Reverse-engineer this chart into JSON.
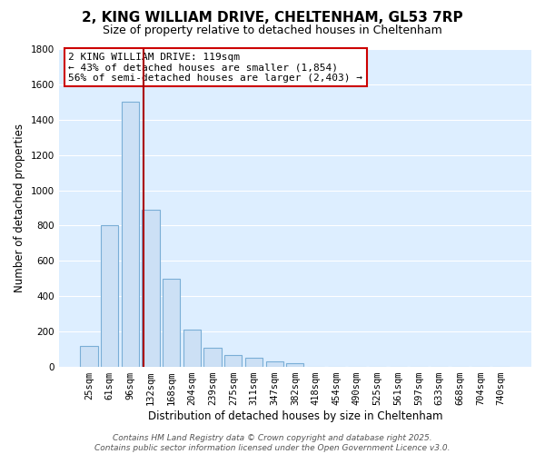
{
  "title": "2, KING WILLIAM DRIVE, CHELTENHAM, GL53 7RP",
  "subtitle": "Size of property relative to detached houses in Cheltenham",
  "xlabel": "Distribution of detached houses by size in Cheltenham",
  "ylabel": "Number of detached properties",
  "bar_labels": [
    "25sqm",
    "61sqm",
    "96sqm",
    "132sqm",
    "168sqm",
    "204sqm",
    "239sqm",
    "275sqm",
    "311sqm",
    "347sqm",
    "382sqm",
    "418sqm",
    "454sqm",
    "490sqm",
    "525sqm",
    "561sqm",
    "597sqm",
    "633sqm",
    "668sqm",
    "704sqm",
    "740sqm"
  ],
  "bar_values": [
    120,
    800,
    1500,
    890,
    500,
    210,
    110,
    65,
    50,
    30,
    20,
    0,
    0,
    0,
    0,
    0,
    0,
    0,
    0,
    0,
    0
  ],
  "bar_color": "#cce0f5",
  "bar_edge_color": "#7aaed6",
  "ylim": [
    0,
    1800
  ],
  "yticks": [
    0,
    200,
    400,
    600,
    800,
    1000,
    1200,
    1400,
    1600,
    1800
  ],
  "grid_color": "#ffffff",
  "bg_color": "#ddeeff",
  "fig_bg_color": "#ffffff",
  "vline_x": 2.64,
  "vline_color": "#aa0000",
  "annotation_box_text": "2 KING WILLIAM DRIVE: 119sqm\n← 43% of detached houses are smaller (1,854)\n56% of semi-detached houses are larger (2,403) →",
  "footer_line1": "Contains HM Land Registry data © Crown copyright and database right 2025.",
  "footer_line2": "Contains public sector information licensed under the Open Government Licence v3.0.",
  "title_fontsize": 11,
  "subtitle_fontsize": 9,
  "xlabel_fontsize": 8.5,
  "ylabel_fontsize": 8.5,
  "tick_fontsize": 7.5,
  "annotation_fontsize": 8,
  "footer_fontsize": 6.5
}
